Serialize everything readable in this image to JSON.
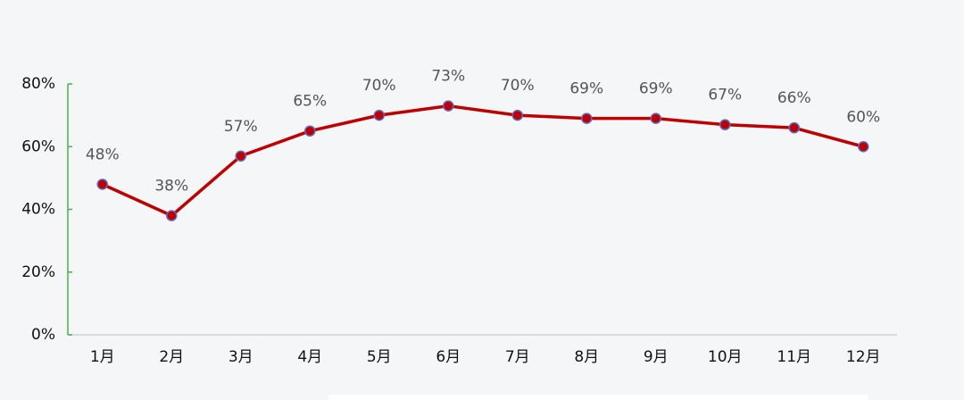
{
  "chart_data": {
    "type": "line",
    "categories": [
      "1月",
      "2月",
      "3月",
      "4月",
      "5月",
      "6月",
      "7月",
      "8月",
      "9月",
      "10月",
      "11月",
      "12月"
    ],
    "values": [
      48,
      38,
      57,
      65,
      70,
      73,
      70,
      69,
      69,
      67,
      66,
      60
    ],
    "value_labels": [
      "48%",
      "38%",
      "57%",
      "65%",
      "70%",
      "73%",
      "70%",
      "69%",
      "69%",
      "67%",
      "66%",
      "60%"
    ],
    "color": "#c00000",
    "marker_color": "#c00000",
    "marker_edge_color": "#5b6bc4",
    "ylim": [
      0,
      80
    ],
    "yticks": [
      {
        "value": 0,
        "label": "0%"
      },
      {
        "value": 20,
        "label": "20%"
      },
      {
        "value": 40,
        "label": "40%"
      },
      {
        "value": 60,
        "label": "60%"
      },
      {
        "value": 80,
        "label": "80%"
      }
    ],
    "grid": false
  }
}
